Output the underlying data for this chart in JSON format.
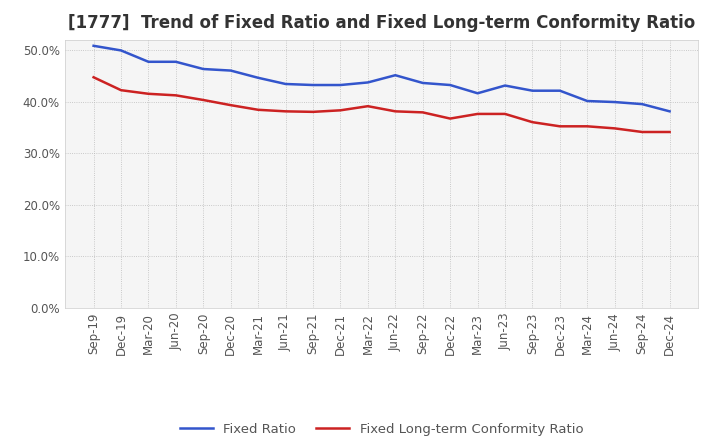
{
  "title": "[1777]  Trend of Fixed Ratio and Fixed Long-term Conformity Ratio",
  "x_labels": [
    "Sep-19",
    "Dec-19",
    "Mar-20",
    "Jun-20",
    "Sep-20",
    "Dec-20",
    "Mar-21",
    "Jun-21",
    "Sep-21",
    "Dec-21",
    "Mar-22",
    "Jun-22",
    "Sep-22",
    "Dec-22",
    "Mar-23",
    "Jun-23",
    "Sep-23",
    "Dec-23",
    "Mar-24",
    "Jun-24",
    "Sep-24",
    "Dec-24"
  ],
  "fixed_ratio": [
    0.508,
    0.499,
    0.477,
    0.477,
    0.463,
    0.46,
    0.446,
    0.434,
    0.432,
    0.432,
    0.437,
    0.451,
    0.436,
    0.432,
    0.416,
    0.431,
    0.421,
    0.421,
    0.401,
    0.399,
    0.395,
    0.381
  ],
  "fixed_lt_ratio": [
    0.447,
    0.422,
    0.415,
    0.412,
    0.403,
    0.393,
    0.384,
    0.381,
    0.38,
    0.383,
    0.391,
    0.381,
    0.379,
    0.367,
    0.376,
    0.376,
    0.36,
    0.352,
    0.352,
    0.348,
    0.341,
    0.341
  ],
  "ylim": [
    0.0,
    0.52
  ],
  "yticks": [
    0.0,
    0.1,
    0.2,
    0.3,
    0.4,
    0.5
  ],
  "blue_color": "#3355cc",
  "red_color": "#cc2222",
  "bg_color": "#ffffff",
  "plot_bg_color": "#f5f5f5",
  "grid_color": "#bbbbbb",
  "legend_fixed_ratio": "Fixed Ratio",
  "legend_fixed_lt_ratio": "Fixed Long-term Conformity Ratio",
  "title_fontsize": 12,
  "axis_fontsize": 8.5,
  "legend_fontsize": 9.5,
  "title_color": "#333333",
  "tick_color": "#555555"
}
